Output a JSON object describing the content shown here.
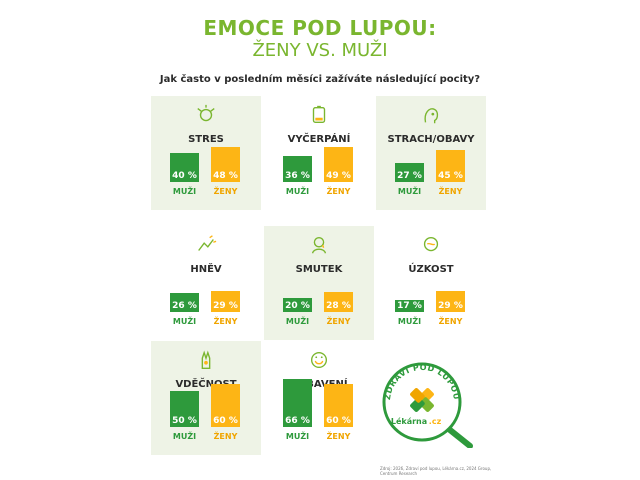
{
  "title_line1": "EMOCE POD LUPOU:",
  "title_line2": "ŽENY VS. MUŽI",
  "question": "Jak často v posledním měsíci zažíváte následující pocity?",
  "source_note": "Zdroj: 2026, Zdraví pod lupou, Lékárna.cz, 2024 Group, Centrum Research",
  "logo": {
    "text_top": "ZDRAVÍ POD LUPOU",
    "text_brand": "Lékárna",
    "text_domain": ".cz"
  },
  "colors": {
    "muzi": "#2e9a3c",
    "zeny": "#fdb515",
    "title": "#7ab62f",
    "panel_bg": "#eef3e6"
  },
  "chart_data": {
    "type": "bar",
    "title": "EMOCE POD LUPOU: ŽENY VS. MUŽI",
    "subtitle": "Jak často v posledním měsíci zažíváte následující pocity?",
    "categories": [
      "MUŽI",
      "ŽENY"
    ],
    "ylim": [
      0,
      100
    ],
    "unit": "%",
    "emotions": [
      {
        "name": "STRES",
        "icon": "stress-icon",
        "values": [
          40,
          48
        ],
        "labels": [
          "40 %",
          "48 %"
        ]
      },
      {
        "name": "VYČERPÁNÍ",
        "icon": "battery-icon",
        "values": [
          36,
          49
        ],
        "labels": [
          "36 %",
          "49 %"
        ]
      },
      {
        "name": "STRACH/OBAVY",
        "icon": "fear-icon",
        "values": [
          27,
          45
        ],
        "labels": [
          "27 %",
          "45 %"
        ]
      },
      {
        "name": "HNĚV",
        "icon": "anger-icon",
        "values": [
          26,
          29
        ],
        "labels": [
          "26 %",
          "29 %"
        ]
      },
      {
        "name": "SMUTEK",
        "icon": "sadness-icon",
        "values": [
          20,
          28
        ],
        "labels": [
          "20 %",
          "28 %"
        ]
      },
      {
        "name": "ÚZKOST",
        "icon": "anxiety-icon",
        "values": [
          17,
          29
        ],
        "labels": [
          "17 %",
          "29 %"
        ]
      },
      {
        "name": "VDĚČNOST",
        "icon": "gratitude-icon",
        "values": [
          50,
          60
        ],
        "labels": [
          "50 %",
          "60 %"
        ]
      },
      {
        "name": "POBAVENÍ",
        "icon": "amusement-icon",
        "values": [
          66,
          60
        ],
        "labels": [
          "66 %",
          "60 %"
        ]
      }
    ]
  }
}
